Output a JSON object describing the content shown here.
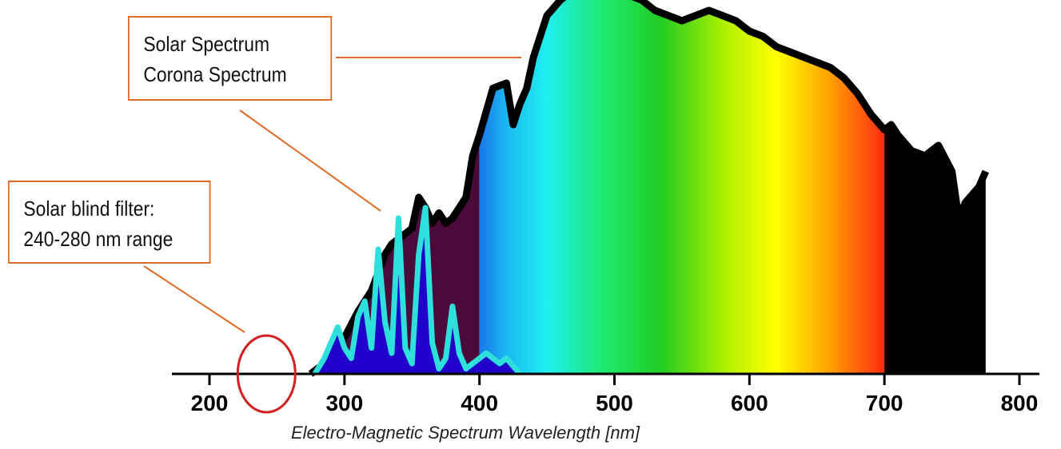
{
  "chart_data": {
    "type": "area",
    "xlabel": "Electro-Magnetic Spectrum Wavelength [nm]",
    "xlim": [
      200,
      800
    ],
    "xticks": [
      200,
      300,
      400,
      500,
      600,
      700,
      800
    ],
    "grid": false,
    "series": [
      {
        "name": "Solar Spectrum",
        "color": "#000000",
        "x": [
          275,
          290,
          300,
          310,
          320,
          330,
          335,
          340,
          350,
          355,
          360,
          365,
          370,
          375,
          380,
          390,
          395,
          400,
          410,
          420,
          425,
          430,
          435,
          440,
          450,
          460,
          470,
          480,
          490,
          500,
          510,
          520,
          530,
          540,
          550,
          560,
          570,
          580,
          590,
          600,
          610,
          620,
          630,
          640,
          650,
          660,
          670,
          680,
          690,
          700,
          705,
          710,
          720,
          730,
          740,
          750,
          755,
          760,
          770,
          775
        ],
        "y": [
          0,
          0.3,
          0.7,
          1.2,
          1.6,
          2.3,
          2.5,
          2.6,
          2.8,
          3.4,
          3.2,
          2.9,
          3.1,
          2.9,
          3.0,
          3.4,
          4.2,
          4.6,
          5.5,
          5.6,
          4.8,
          5.2,
          5.5,
          6.1,
          6.9,
          7.2,
          7.4,
          7.4,
          7.3,
          7.4,
          7.3,
          7.2,
          7.0,
          6.9,
          6.8,
          6.9,
          7.0,
          6.9,
          6.8,
          6.6,
          6.5,
          6.3,
          6.2,
          6.1,
          6.0,
          5.9,
          5.7,
          5.4,
          5.0,
          4.7,
          4.8,
          4.6,
          4.3,
          4.2,
          4.4,
          3.9,
          3.0,
          3.3,
          3.6,
          3.9
        ]
      },
      {
        "name": "Corona Spectrum",
        "color": "#2de0dc",
        "x": [
          278,
          285,
          295,
          300,
          305,
          310,
          315,
          320,
          325,
          330,
          335,
          340,
          345,
          350,
          355,
          360,
          365,
          370,
          375,
          380,
          385,
          390,
          395,
          400,
          405,
          410,
          415,
          420,
          430
        ],
        "y": [
          0,
          0.3,
          0.9,
          0.5,
          0.3,
          1.1,
          1.4,
          0.5,
          2.4,
          1.0,
          0.4,
          3.0,
          0.5,
          0.2,
          2.3,
          3.2,
          0.6,
          0.1,
          0.3,
          1.3,
          0.4,
          0.1,
          0.2,
          0.3,
          0.4,
          0.3,
          0.2,
          0.3,
          0
        ]
      }
    ]
  },
  "callouts": {
    "solar": {
      "line1": "Solar Spectrum",
      "line2": "Corona Spectrum"
    },
    "filter": {
      "line1": "Solar blind filter:",
      "line2": "240-280 nm range"
    }
  },
  "filter_marker": {
    "range": [
      240,
      280
    ],
    "color": "#d42020"
  },
  "colors": {
    "callout_border": "#e06a28",
    "axis": "#000000",
    "uv_fill": "#4a0a3a",
    "corona_fill": "#2200cc",
    "solar_outline": "#000000"
  }
}
